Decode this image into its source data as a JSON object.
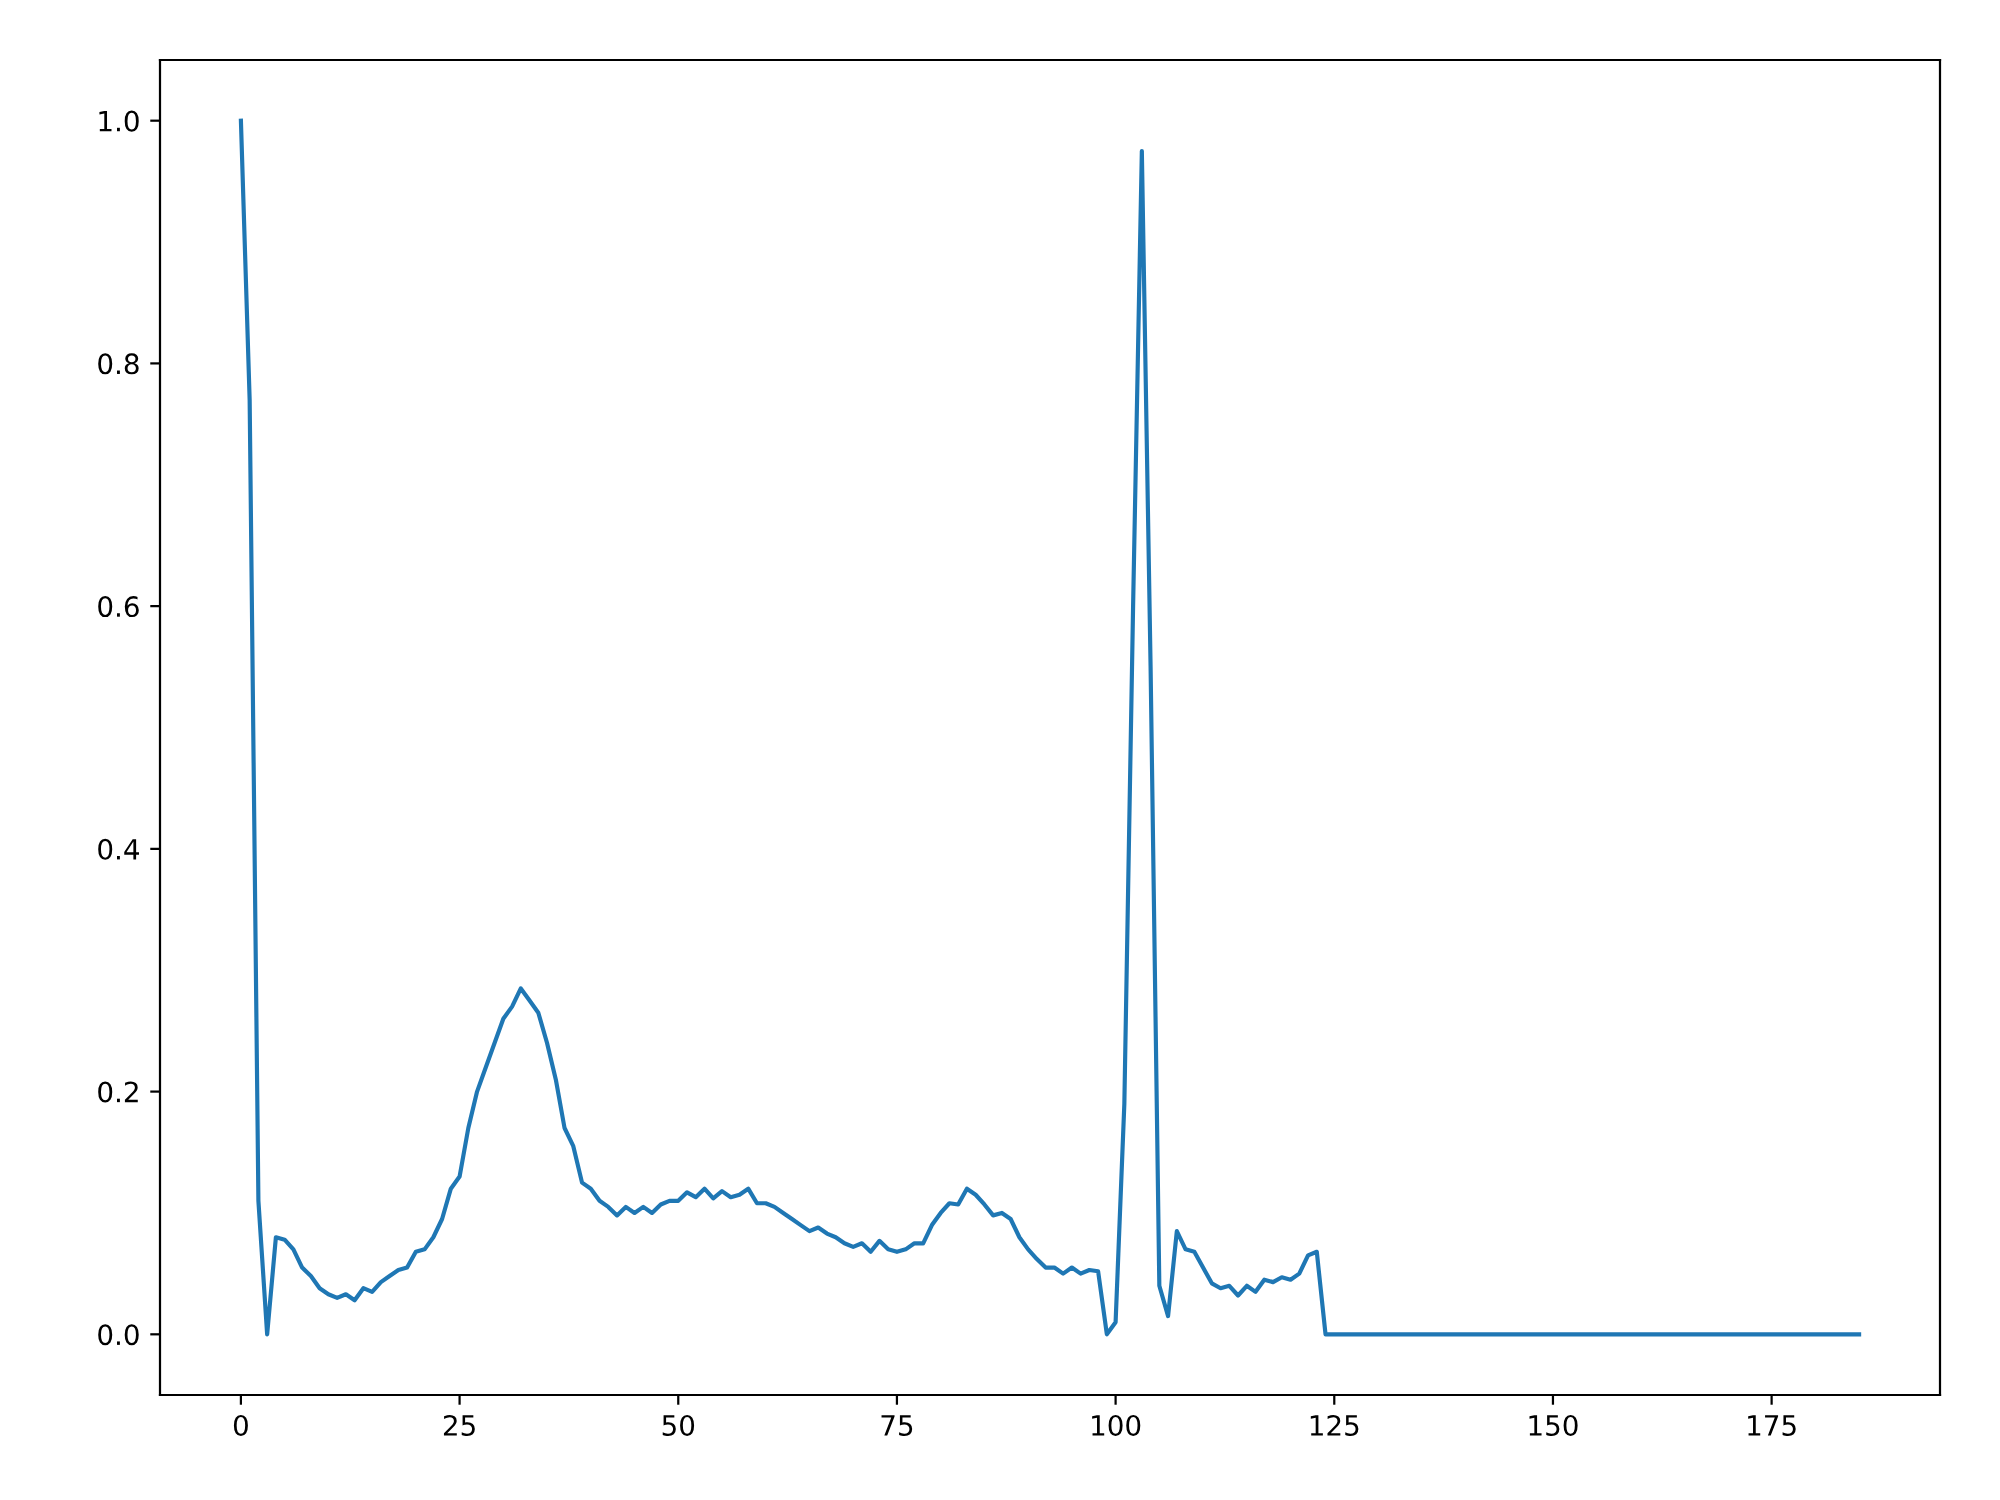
{
  "chart_data": {
    "type": "line",
    "x": [
      0,
      1,
      2,
      3,
      4,
      5,
      6,
      7,
      8,
      9,
      10,
      11,
      12,
      13,
      14,
      15,
      16,
      17,
      18,
      19,
      20,
      21,
      22,
      23,
      24,
      25,
      26,
      27,
      28,
      29,
      30,
      31,
      32,
      33,
      34,
      35,
      36,
      37,
      38,
      39,
      40,
      41,
      42,
      43,
      44,
      45,
      46,
      47,
      48,
      49,
      50,
      51,
      52,
      53,
      54,
      55,
      56,
      57,
      58,
      59,
      60,
      61,
      62,
      63,
      64,
      65,
      66,
      67,
      68,
      69,
      70,
      71,
      72,
      73,
      74,
      75,
      76,
      77,
      78,
      79,
      80,
      81,
      82,
      83,
      84,
      85,
      86,
      87,
      88,
      89,
      90,
      91,
      92,
      93,
      94,
      95,
      96,
      97,
      98,
      99,
      100,
      101,
      102,
      103,
      104,
      105,
      106,
      107,
      108,
      109,
      110,
      111,
      112,
      113,
      114,
      115,
      116,
      117,
      118,
      119,
      120,
      121,
      122,
      123,
      124,
      185
    ],
    "series": [
      {
        "color": "#1f77b4",
        "values": [
          1.0,
          0.77,
          0.11,
          0.0,
          0.08,
          0.078,
          0.07,
          0.055,
          0.048,
          0.038,
          0.033,
          0.03,
          0.033,
          0.028,
          0.038,
          0.035,
          0.043,
          0.048,
          0.053,
          0.055,
          0.068,
          0.07,
          0.08,
          0.095,
          0.12,
          0.13,
          0.17,
          0.2,
          0.22,
          0.24,
          0.26,
          0.27,
          0.285,
          0.275,
          0.265,
          0.24,
          0.21,
          0.17,
          0.155,
          0.125,
          0.12,
          0.11,
          0.105,
          0.098,
          0.105,
          0.1,
          0.105,
          0.1,
          0.107,
          0.11,
          0.11,
          0.117,
          0.113,
          0.12,
          0.112,
          0.118,
          0.113,
          0.115,
          0.12,
          0.108,
          0.108,
          0.105,
          0.1,
          0.095,
          0.09,
          0.085,
          0.088,
          0.083,
          0.08,
          0.075,
          0.072,
          0.075,
          0.068,
          0.077,
          0.07,
          0.068,
          0.07,
          0.075,
          0.075,
          0.09,
          0.1,
          0.108,
          0.107,
          0.12,
          0.115,
          0.107,
          0.098,
          0.1,
          0.095,
          0.08,
          0.07,
          0.062,
          0.055,
          0.055,
          0.05,
          0.055,
          0.05,
          0.053,
          0.052,
          0.0,
          0.01,
          0.19,
          0.6,
          0.975,
          0.55,
          0.04,
          0.015,
          0.085,
          0.07,
          0.068,
          0.055,
          0.042,
          0.038,
          0.04,
          0.032,
          0.04,
          0.035,
          0.045,
          0.043,
          0.047,
          0.045,
          0.05,
          0.065,
          0.068,
          0.0,
          0.0
        ]
      }
    ],
    "xlim": [
      -9.25,
      194.25
    ],
    "ylim": [
      -0.05,
      1.05
    ],
    "xticks": [
      0,
      25,
      50,
      75,
      100,
      125,
      150,
      175
    ],
    "yticks": [
      {
        "value": 0,
        "label": "0.0"
      },
      {
        "value": 0.2,
        "label": "0.2"
      },
      {
        "value": 0.4,
        "label": "0.4"
      },
      {
        "value": 0.6,
        "label": "0.6"
      },
      {
        "value": 0.8,
        "label": "0.8"
      },
      {
        "value": 1,
        "label": "1.0"
      }
    ],
    "grid": false
  }
}
